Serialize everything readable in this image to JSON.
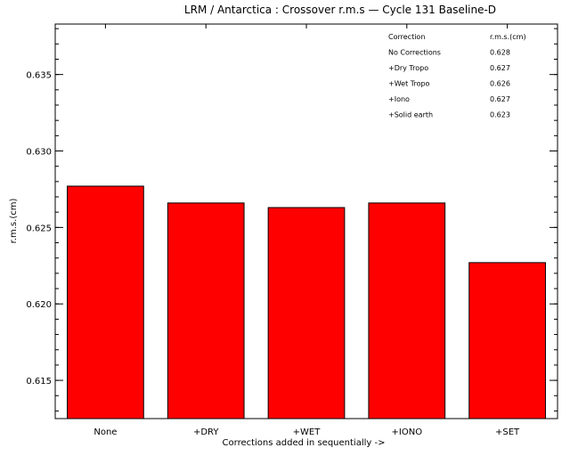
{
  "chart_data": {
    "type": "bar",
    "title": "LRM / Antarctica : Crossover r.m.s — Cycle 131 Baseline-D",
    "xlabel": "Corrections added in sequentially ->",
    "ylabel": "r.m.s.(cm)",
    "categories": [
      "None",
      "+DRY",
      "+WET",
      "+IONO",
      "+SET"
    ],
    "values": [
      0.6277,
      0.6266,
      0.6263,
      0.6266,
      0.6227
    ],
    "ylim": [
      0.6125,
      0.6383
    ],
    "yticks": [
      "0.615",
      "0.620",
      "0.625",
      "0.630",
      "0.635"
    ],
    "ytick_values": [
      0.615,
      0.62,
      0.625,
      0.63,
      0.635
    ],
    "minor_ytick_step": 0.001,
    "bar_color": "#ff0000",
    "grid": false,
    "legend_table": {
      "placement": "top-right",
      "header": [
        "Correction",
        "r.m.s.(cm)"
      ],
      "rows": [
        [
          "No Corrections",
          "0.628"
        ],
        [
          "+Dry Tropo",
          "0.627"
        ],
        [
          "+Wet Tropo",
          "0.626"
        ],
        [
          "+Iono",
          "0.627"
        ],
        [
          "+Solid earth",
          "0.623"
        ]
      ]
    }
  }
}
